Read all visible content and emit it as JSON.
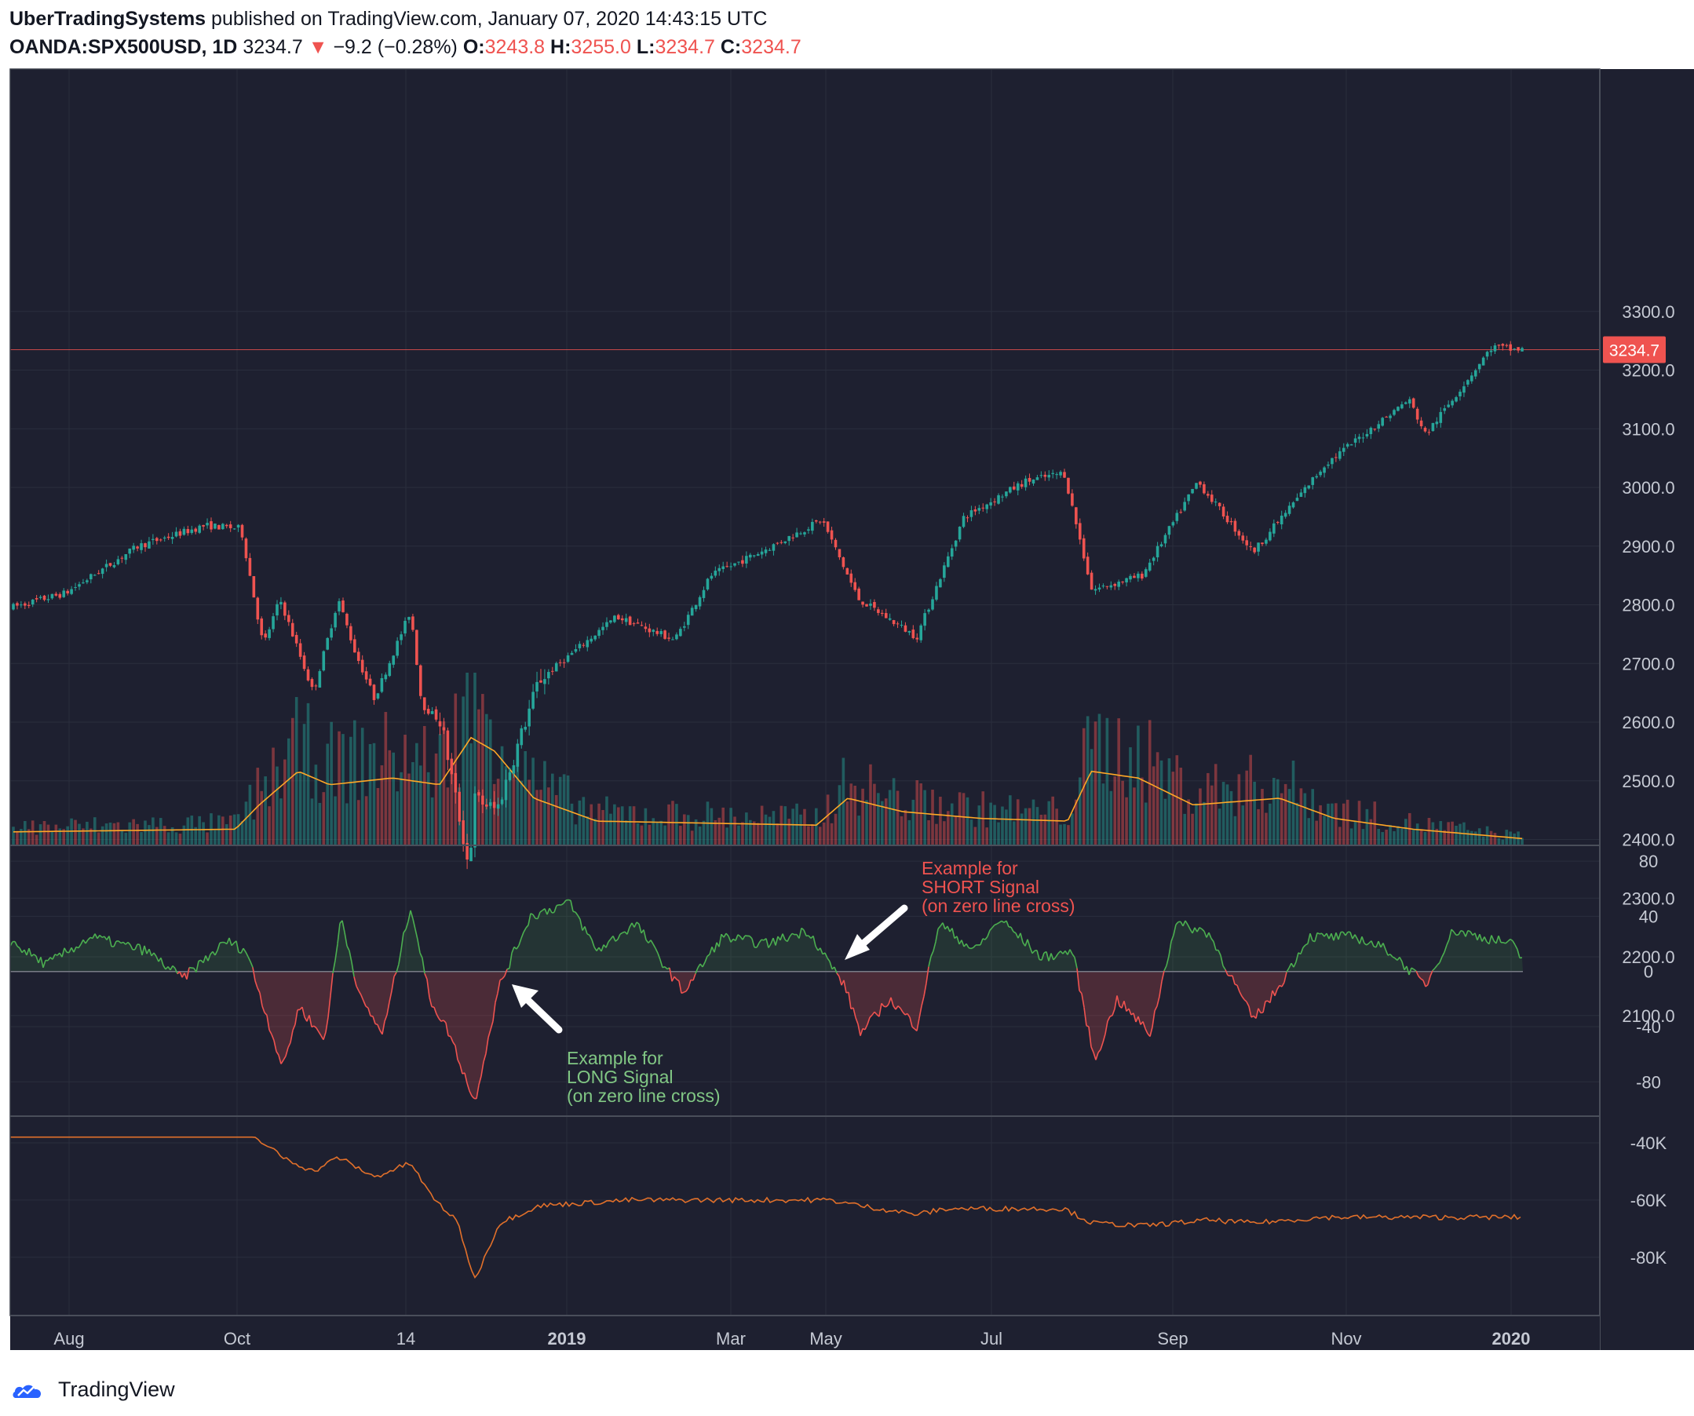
{
  "header": {
    "publisher": "UberTradingSystems",
    "published_text": "published on TradingView.com, January 07, 2020 14:43:15 UTC",
    "symbol": "OANDA:SPX500USD, 1D",
    "last": "3234.7",
    "change": "−9.2 (−0.28%)",
    "open_label": "O:",
    "open": "3243.8",
    "high_label": "H:",
    "high": "3255.0",
    "low_label": "L:",
    "low": "3234.7",
    "close_label": "C:",
    "close": "3234.7"
  },
  "price_axis": {
    "ticks": [
      "3300.0",
      "3200.0",
      "3100.0",
      "3000.0",
      "2900.0",
      "2800.0",
      "2700.0",
      "2600.0",
      "2500.0",
      "2400.0",
      "2300.0",
      "2200.0",
      "2100.0"
    ]
  },
  "last_price_label": "3234.7",
  "osc_axis": {
    "ticks": [
      "80",
      "40",
      "0",
      "-40",
      "-80"
    ]
  },
  "flow_axis": {
    "ticks": [
      "-40K",
      "-60K",
      "-80K"
    ]
  },
  "time_axis": {
    "labels": [
      "Aug",
      "Oct",
      "14",
      "2019",
      "Mar",
      "May",
      "Jul",
      "Sep",
      "Nov",
      "2020"
    ]
  },
  "annotations": {
    "short": [
      "Example for",
      "SHORT Signal",
      "(on zero line cross)"
    ],
    "long": [
      "Example for",
      "LONG Signal",
      "(on zero line cross)"
    ]
  },
  "footer": {
    "brand": "TradingView"
  },
  "colors": {
    "up": "#26a69a",
    "down": "#ef5350",
    "bg": "#1e2030",
    "osc_up": "#4caf50",
    "osc_down": "#ef5350",
    "ma": "#ffa726",
    "flow": "#e2702a"
  },
  "chart_data": [
    {
      "type": "candlestick",
      "title": "OANDA:SPX500USD, 1D",
      "x_range": [
        "2018-07-12",
        "2020-01-07"
      ],
      "ylim": [
        2080,
        3380
      ],
      "anchors": [
        [
          "2018-07-12",
          2795
        ],
        [
          "2018-08-01",
          2820
        ],
        [
          "2018-08-27",
          2900
        ],
        [
          "2018-09-20",
          2935
        ],
        [
          "2018-10-03",
          2930
        ],
        [
          "2018-10-11",
          2730
        ],
        [
          "2018-10-17",
          2810
        ],
        [
          "2018-10-29",
          2650
        ],
        [
          "2018-11-07",
          2810
        ],
        [
          "2018-11-13",
          2720
        ],
        [
          "2018-11-20",
          2640
        ],
        [
          "2018-12-03",
          2790
        ],
        [
          "2018-12-07",
          2630
        ],
        [
          "2018-12-14",
          2600
        ],
        [
          "2018-12-24",
          2350
        ],
        [
          "2018-12-26",
          2470
        ],
        [
          "2019-01-03",
          2450
        ],
        [
          "2019-01-18",
          2670
        ],
        [
          "2019-02-15",
          2780
        ],
        [
          "2019-03-08",
          2740
        ],
        [
          "2019-03-21",
          2850
        ],
        [
          "2019-04-12",
          2900
        ],
        [
          "2019-04-30",
          2945
        ],
        [
          "2019-05-13",
          2810
        ],
        [
          "2019-06-03",
          2745
        ],
        [
          "2019-06-20",
          2950
        ],
        [
          "2019-07-12",
          3010
        ],
        [
          "2019-07-26",
          3025
        ],
        [
          "2019-08-05",
          2825
        ],
        [
          "2019-08-23",
          2850
        ],
        [
          "2019-09-12",
          3010
        ],
        [
          "2019-10-02",
          2890
        ],
        [
          "2019-10-28",
          3040
        ],
        [
          "2019-11-27",
          3150
        ],
        [
          "2019-12-03",
          3090
        ],
        [
          "2019-12-27",
          3240
        ],
        [
          "2020-01-03",
          3235
        ],
        [
          "2020-01-07",
          3235
        ]
      ]
    },
    {
      "type": "bar",
      "title": "Volume with moving average",
      "series": []
    },
    {
      "type": "area",
      "title": "Oscillator",
      "ylim": [
        -90,
        90
      ],
      "anchors": [
        [
          "2018-07-12",
          22
        ],
        [
          "2018-07-25",
          5
        ],
        [
          "2018-08-10",
          25
        ],
        [
          "2018-08-30",
          15
        ],
        [
          "2018-09-12",
          -5
        ],
        [
          "2018-09-28",
          22
        ],
        [
          "2018-10-05",
          15
        ],
        [
          "2018-10-18",
          -70
        ],
        [
          "2018-10-24",
          -25
        ],
        [
          "2018-11-02",
          -50
        ],
        [
          "2018-11-08",
          40
        ],
        [
          "2018-11-15",
          -20
        ],
        [
          "2018-11-23",
          -45
        ],
        [
          "2018-12-03",
          48
        ],
        [
          "2018-12-10",
          -20
        ],
        [
          "2018-12-17",
          -45
        ],
        [
          "2018-12-26",
          -95
        ],
        [
          "2019-01-04",
          -10
        ],
        [
          "2019-01-15",
          40
        ],
        [
          "2019-01-29",
          50
        ],
        [
          "2019-02-08",
          15
        ],
        [
          "2019-02-22",
          35
        ],
        [
          "2019-03-11",
          -15
        ],
        [
          "2019-03-25",
          25
        ],
        [
          "2019-04-10",
          20
        ],
        [
          "2019-04-25",
          30
        ],
        [
          "2019-05-03",
          5
        ],
        [
          "2019-05-08",
          -10
        ],
        [
          "2019-05-14",
          -45
        ],
        [
          "2019-05-24",
          -20
        ],
        [
          "2019-06-03",
          -40
        ],
        [
          "2019-06-11",
          35
        ],
        [
          "2019-06-24",
          15
        ],
        [
          "2019-07-03",
          38
        ],
        [
          "2019-07-18",
          10
        ],
        [
          "2019-07-29",
          15
        ],
        [
          "2019-08-06",
          -65
        ],
        [
          "2019-08-14",
          -20
        ],
        [
          "2019-08-26",
          -45
        ],
        [
          "2019-09-04",
          35
        ],
        [
          "2019-09-16",
          28
        ],
        [
          "2019-10-02",
          -35
        ],
        [
          "2019-10-10",
          -15
        ],
        [
          "2019-10-22",
          25
        ],
        [
          "2019-11-08",
          25
        ],
        [
          "2019-11-20",
          15
        ],
        [
          "2019-12-03",
          -10
        ],
        [
          "2019-12-13",
          30
        ],
        [
          "2020-01-03",
          20
        ],
        [
          "2020-01-07",
          8
        ]
      ]
    },
    {
      "type": "line",
      "title": "Cumulative flow",
      "ylim": [
        -95000,
        -30000
      ],
      "anchors": [
        [
          "2018-07-12",
          -38000
        ],
        [
          "2018-10-08",
          -38000
        ],
        [
          "2018-10-18",
          -45000
        ],
        [
          "2018-10-29",
          -50000
        ],
        [
          "2018-11-07",
          -45000
        ],
        [
          "2018-11-20",
          -52000
        ],
        [
          "2018-12-03",
          -47000
        ],
        [
          "2018-12-10",
          -58000
        ],
        [
          "2018-12-20",
          -68000
        ],
        [
          "2018-12-26",
          -88000
        ],
        [
          "2019-01-04",
          -68000
        ],
        [
          "2019-01-18",
          -62000
        ],
        [
          "2019-02-20",
          -60000
        ],
        [
          "2019-05-03",
          -60000
        ],
        [
          "2019-05-14",
          -62000
        ],
        [
          "2019-06-03",
          -65000
        ],
        [
          "2019-06-14",
          -63000
        ],
        [
          "2019-07-26",
          -63000
        ],
        [
          "2019-08-05",
          -68000
        ],
        [
          "2019-08-23",
          -69000
        ],
        [
          "2019-09-16",
          -67000
        ],
        [
          "2019-10-02",
          -68000
        ],
        [
          "2019-10-28",
          -66000
        ],
        [
          "2020-01-07",
          -66000
        ]
      ]
    }
  ]
}
